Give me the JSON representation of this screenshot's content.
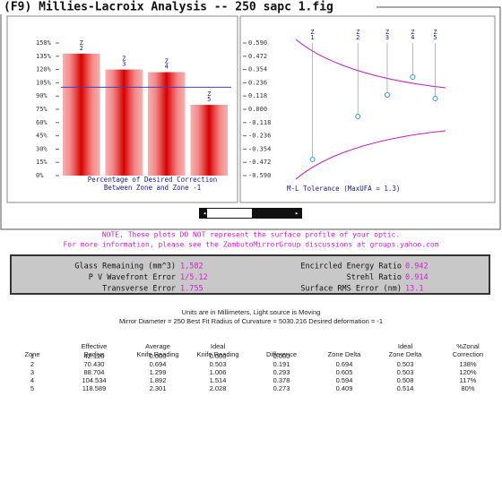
{
  "window_title": "(F9) Millies-Lacroix Analysis -- 250 sapc 1.fig",
  "chart_data": [
    {
      "type": "bar",
      "categories": [
        "Z 2",
        "Z 3",
        "Z 4",
        "Z 5"
      ],
      "values": [
        138,
        120,
        117,
        80
      ],
      "reference_line": 100,
      "ylim": [
        0,
        150
      ],
      "yticks": [
        {
          "value": 0,
          "label": "0%"
        },
        {
          "value": 15,
          "label": "15%"
        },
        {
          "value": 30,
          "label": "30%"
        },
        {
          "value": 45,
          "label": "45%"
        },
        {
          "value": 60,
          "label": "60%"
        },
        {
          "value": 75,
          "label": "75%"
        },
        {
          "value": 90,
          "label": "90%"
        },
        {
          "value": 105,
          "label": "105%"
        },
        {
          "value": 120,
          "label": "120%"
        },
        {
          "value": 135,
          "label": "135%"
        },
        {
          "value": 150,
          "label": "150%"
        }
      ],
      "xlabel": [
        "Percentage of Desired Correction",
        "Between Zone and Zone -1"
      ]
    },
    {
      "type": "scatter",
      "labels": [
        "Z 1",
        "Z 2",
        "Z 3",
        "Z 4",
        "Z 5"
      ],
      "x": [
        42.12,
        70.43,
        88.704,
        104.534,
        118.589
      ],
      "values": [
        -0.446,
        -0.064,
        0.128,
        0.287,
        0.096
      ],
      "xlim": [
        0,
        125
      ],
      "ylim": [
        -0.59,
        0.59
      ],
      "yticks": [
        {
          "value": 0.59,
          "label": "0.590"
        },
        {
          "value": 0.472,
          "label": "0.472"
        },
        {
          "value": 0.354,
          "label": "0.354"
        },
        {
          "value": 0.236,
          "label": "0.236"
        },
        {
          "value": 0.118,
          "label": "0.118"
        },
        {
          "value": 0,
          "label": "0.000"
        },
        {
          "value": -0.118,
          "label": "-0.118"
        },
        {
          "value": -0.236,
          "label": "-0.236"
        },
        {
          "value": -0.354,
          "label": "-0.354"
        },
        {
          "value": -0.472,
          "label": "-0.472"
        },
        {
          "value": -0.59,
          "label": "-0.590"
        }
      ],
      "xlabel": "M-L Tolerance (MaxUFA = 1.3)"
    }
  ],
  "note": [
    "NOTE, These plots DO NOT represent the surface profile of your optic.",
    "For more information, please see the ZambutoMirrorGroup discussions at groups.yahoo.com"
  ],
  "stats": {
    "left": [
      {
        "label": "Glass Remaining (mm^3)",
        "value": "1,582"
      },
      {
        "label": "P V Wavefront Error",
        "value": "1/5.12"
      },
      {
        "label": "Transverse Error",
        "value": "1.755"
      }
    ],
    "right": [
      {
        "label": "Encircled Energy Ratio",
        "value": "0.942"
      },
      {
        "label": "Strehl Ratio",
        "value": "0.914"
      },
      {
        "label": "Surface RMS Error (nm)",
        "value": "13.1"
      }
    ]
  },
  "table": {
    "info": [
      "Units are in Millimeters, Light source is Moving",
      "Mirror Diameter = 250    Best Fit Radius of Curvature = 5030.216    Desired deformation = -1"
    ],
    "headers": [
      [
        "Zone"
      ],
      [
        "Effective",
        "Radius"
      ],
      [
        "Average",
        "Knife Reading"
      ],
      [
        "Ideal",
        "Knife Reading"
      ],
      [
        "Difference"
      ],
      [
        "Zone Delta"
      ],
      [
        "Ideal",
        "Zone Delta"
      ],
      [
        "%Zonal",
        "Correction"
      ]
    ],
    "rows": [
      [
        "1",
        "42.120",
        "0.000",
        "0.000",
        "0.000",
        "",
        "",
        ""
      ],
      [
        "2",
        "70.430",
        "0.694",
        "0.503",
        "0.191",
        "0.694",
        "0.503",
        "138%"
      ],
      [
        "3",
        "88.704",
        "1.299",
        "1.006",
        "0.293",
        "0.605",
        "0.503",
        "120%"
      ],
      [
        "4",
        "104.534",
        "1.892",
        "1.514",
        "0.378",
        "0.594",
        "0.508",
        "117%"
      ],
      [
        "5",
        "118.589",
        "2.301",
        "2.028",
        "0.273",
        "0.409",
        "0.514",
        "80%"
      ]
    ]
  }
}
